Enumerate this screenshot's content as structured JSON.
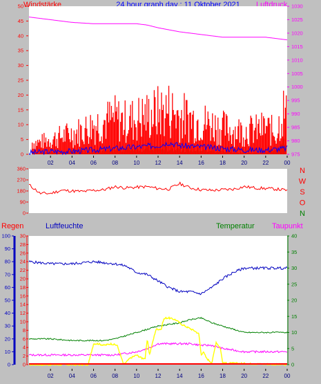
{
  "colors": {
    "background": "#c0c0c0",
    "plot_bg": "#ffffff",
    "wind": "#ff0000",
    "gust": "#0000ff",
    "calm": "#008000",
    "pressure": "#ff00ff",
    "rain": "#ff0000",
    "humidity": "#0000c0",
    "temperature": "#008000",
    "dewpoint": "#ff00ff",
    "solar": "#ffff00",
    "title": "#0000ff"
  },
  "chart_data": [
    {
      "type": "line",
      "title": "24 hour graph day : 11 Oktober 2021",
      "left_label": "Windstärke",
      "right_label": "Luftdruck",
      "x_hour_labels": [
        "02",
        "04",
        "06",
        "08",
        "10",
        "12",
        "14",
        "16",
        "18",
        "20",
        "22",
        "00"
      ],
      "left_axis": {
        "ticks": [
          "0",
          "5",
          "10",
          "15",
          "20",
          "25",
          "30",
          "35",
          "40",
          "45",
          "50"
        ],
        "ylim": [
          0,
          50
        ]
      },
      "right_axis": {
        "ticks": [
          "975",
          "980",
          "985",
          "990",
          "995",
          "1000",
          "1005",
          "1010",
          "1015",
          "1020",
          "1025",
          "1030"
        ],
        "ylim": [
          975,
          1030
        ]
      },
      "series": [
        {
          "role": "pressure",
          "x": [
            0,
            2,
            4,
            6,
            8,
            10,
            11,
            12,
            14,
            16,
            18,
            20,
            22,
            24
          ],
          "y": [
            1026,
            1025,
            1024,
            1023.5,
            1023.5,
            1023.5,
            1023,
            1022,
            1020.5,
            1019.5,
            1018.5,
            1018.5,
            1018.5,
            1017.5
          ]
        },
        {
          "role": "wind",
          "x": [
            0,
            1,
            2,
            3,
            4,
            5,
            6,
            7,
            8,
            9,
            10,
            11,
            12,
            13,
            14,
            15,
            16,
            17,
            18,
            19,
            20,
            21,
            22,
            23,
            23.6,
            24
          ],
          "y": [
            4,
            4,
            5,
            6,
            7,
            8,
            10,
            11,
            12,
            11,
            12,
            13,
            14,
            15,
            13,
            12,
            11,
            10,
            9,
            8,
            8,
            8,
            9,
            7,
            15,
            12
          ]
        },
        {
          "role": "gust",
          "x": [
            0,
            2,
            4,
            6,
            8,
            10,
            12,
            13,
            14,
            16,
            18,
            20,
            22,
            24
          ],
          "y": [
            0.5,
            1,
            1,
            1.5,
            2,
            2.5,
            3,
            4,
            3,
            2.5,
            2,
            1.5,
            1.5,
            2
          ]
        },
        {
          "role": "calm",
          "x": [
            0,
            2,
            4,
            6,
            8,
            10,
            12,
            14,
            16,
            18,
            20,
            22,
            23.7,
            24
          ],
          "y": [
            0.5,
            0.5,
            1,
            1,
            1.5,
            2,
            2,
            2,
            1.5,
            1,
            0.5,
            0.5,
            4,
            2
          ]
        }
      ]
    },
    {
      "type": "line",
      "left_axis": {
        "ticks": [
          "0",
          "90",
          "180",
          "270",
          "360"
        ],
        "ylim": [
          0,
          360
        ]
      },
      "right_labels": [
        "N",
        "W",
        "S",
        "O",
        "N"
      ],
      "series": [
        {
          "role": "wind_direction",
          "x": [
            0,
            0.7,
            1,
            2,
            3,
            4,
            5,
            6,
            7,
            8,
            9,
            10,
            11,
            12,
            13,
            14,
            15,
            16,
            17,
            18,
            19,
            20,
            21,
            22,
            23,
            24
          ],
          "y": [
            230,
            185,
            160,
            160,
            185,
            180,
            175,
            185,
            190,
            215,
            205,
            210,
            215,
            200,
            195,
            240,
            205,
            190,
            185,
            190,
            195,
            215,
            205,
            200,
            195,
            185
          ]
        }
      ]
    },
    {
      "type": "line",
      "labels": {
        "rain": "Regen",
        "humidity": "Luftfeuchte",
        "temperature": "Temperatur",
        "dewpoint": "Taupunkt"
      },
      "x_hour_labels": [
        "02",
        "04",
        "06",
        "08",
        "10",
        "12",
        "14",
        "16",
        "18",
        "20",
        "22",
        "00"
      ],
      "rain_axis": {
        "ticks": [
          "0",
          "10",
          "20",
          "30",
          "40",
          "50",
          "60",
          "70",
          "80",
          "90",
          "100"
        ],
        "ylim": [
          0,
          100
        ]
      },
      "humidity_axis": {
        "ticks": [
          "0",
          "2",
          "4",
          "6",
          "8",
          "10",
          "12",
          "14",
          "16",
          "18",
          "20",
          "22",
          "24",
          "26",
          "28",
          "30"
        ],
        "ylim": [
          0,
          30
        ]
      },
      "temperature_axis": {
        "ticks": [
          "0",
          "5",
          "10",
          "15",
          "20",
          "25",
          "30",
          "35",
          "40"
        ],
        "ylim": [
          0,
          40
        ]
      },
      "series": [
        {
          "role": "humidity",
          "x": [
            0,
            2,
            4,
            6,
            8,
            9,
            10,
            11,
            12,
            13,
            14,
            15,
            16,
            17,
            18,
            19,
            20,
            21,
            22,
            24
          ],
          "y": [
            24,
            23.5,
            23.5,
            24,
            23.5,
            23,
            21.5,
            21,
            19.5,
            18,
            17,
            17,
            16.5,
            18,
            20,
            21.5,
            22.5,
            22.5,
            22.5,
            22.5
          ]
        },
        {
          "role": "temperature",
          "x": [
            0,
            2,
            4,
            6,
            7,
            8,
            9,
            10,
            11,
            12,
            13,
            14,
            15,
            16,
            17,
            18,
            19,
            20,
            22,
            24
          ],
          "y": [
            8,
            8,
            7.5,
            7.5,
            7.5,
            8,
            9,
            10,
            11,
            12,
            12.5,
            13,
            14,
            14.5,
            13,
            12,
            11,
            10,
            10,
            10
          ]
        },
        {
          "role": "dewpoint",
          "x": [
            0,
            2,
            4,
            6,
            8,
            10,
            11,
            12,
            13,
            14,
            15,
            16,
            17,
            18,
            20,
            22,
            24
          ],
          "y": [
            3,
            3,
            3,
            3,
            3,
            4,
            5,
            6.5,
            6.5,
            6.5,
            6.5,
            6,
            6,
            5,
            4,
            4,
            4
          ]
        },
        {
          "role": "solar",
          "x": [
            0,
            5.5,
            6,
            6.4,
            7,
            7.6,
            8.2,
            8.8,
            9.4,
            10,
            10.5,
            10.8,
            11,
            11.2,
            11.8,
            12.3,
            12.5,
            12.7,
            13,
            13.6,
            14.2,
            14.8,
            15.4,
            15.8,
            16,
            16.2,
            16.5,
            17,
            17.4,
            17.8,
            18,
            24
          ],
          "y": [
            0,
            0,
            6.5,
            6.5,
            6,
            6.5,
            6,
            0,
            2,
            3,
            2,
            2,
            8,
            3,
            11,
            11,
            14,
            14.5,
            14.5,
            14,
            12.5,
            11.5,
            10.5,
            9.5,
            3,
            4,
            2,
            0.5,
            7,
            5,
            0.5,
            0
          ]
        }
      ]
    }
  ]
}
